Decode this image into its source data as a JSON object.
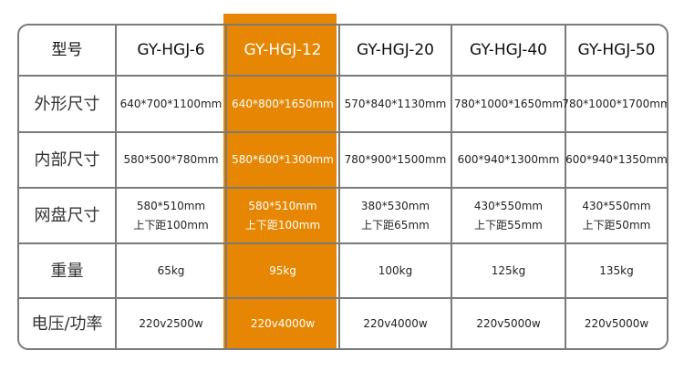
{
  "colors": {
    "highlight": "#E68603",
    "border": "#7a7a7a"
  },
  "highlight_column": 2,
  "header": [
    "型号",
    "GY-HGJ-6",
    "GY-HGJ-12",
    "GY-HGJ-20",
    "GY-HGJ-40",
    "GY-HGJ-50"
  ],
  "rows": [
    {
      "label": "外形尺寸",
      "values": [
        [
          "640*700*1100mm"
        ],
        [
          "640*800*1650mm"
        ],
        [
          "570*840*1130mm"
        ],
        [
          "780*1000*1650mm"
        ],
        [
          "780*1000*1700mm"
        ]
      ]
    },
    {
      "label": "内部尺寸",
      "values": [
        [
          "580*500*780mm"
        ],
        [
          "580*600*1300mm"
        ],
        [
          "780*900*1500mm"
        ],
        [
          "600*940*1300mm"
        ],
        [
          "600*940*1350mm"
        ]
      ]
    },
    {
      "label": "网盘尺寸",
      "values": [
        [
          "580*510mm",
          "上下距100mm"
        ],
        [
          "580*510mm",
          "上下距100mm"
        ],
        [
          "380*530mm",
          "上下距65mm"
        ],
        [
          "430*550mm",
          "上下距55mm"
        ],
        [
          "430*550mm",
          "上下距50mm"
        ]
      ]
    },
    {
      "label": "重量",
      "values": [
        [
          "65kg"
        ],
        [
          "95kg"
        ],
        [
          "100kg"
        ],
        [
          "125kg"
        ],
        [
          "135kg"
        ]
      ]
    },
    {
      "label": "电压/功率",
      "values": [
        [
          "220v2500w"
        ],
        [
          "220v4000w"
        ],
        [
          "220v4000w"
        ],
        [
          "220v5000w"
        ],
        [
          "220v5000w"
        ]
      ]
    }
  ]
}
